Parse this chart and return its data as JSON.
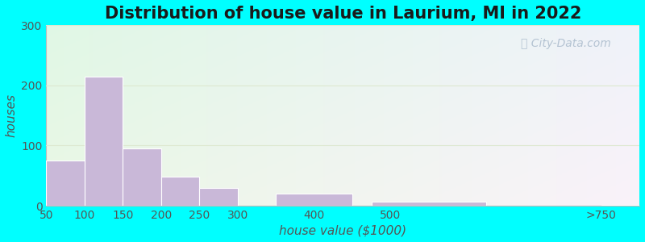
{
  "title": "Distribution of house value in Laurium, MI in 2022",
  "xlabel": "house value ($1000)",
  "ylabel": "houses",
  "bar_centers": [
    75,
    125,
    175,
    225,
    275,
    400,
    550,
    800
  ],
  "bar_widths": [
    50,
    50,
    50,
    50,
    50,
    100,
    150,
    50
  ],
  "bar_heights": [
    75,
    215,
    95,
    48,
    30,
    20,
    7,
    2
  ],
  "bar_color": "#c9b8d8",
  "bar_edgecolor": "#ffffff",
  "bg_color": "#00ffff",
  "ylim": [
    0,
    300
  ],
  "yticks": [
    0,
    100,
    200,
    300
  ],
  "xtick_labels": [
    "50",
    "100",
    "150",
    "200",
    "250",
    "300",
    "400",
    "500",
    ">750"
  ],
  "xtick_positions": [
    50,
    100,
    150,
    200,
    250,
    300,
    400,
    500,
    775
  ],
  "title_fontsize": 15,
  "axis_label_fontsize": 11,
  "tick_fontsize": 10,
  "watermark_text": "City-Data.com",
  "watermark_color": "#aabbcc",
  "grid_color": "#dde8d0",
  "figsize": [
    8.0,
    3.0
  ],
  "dpi": 100,
  "xlim": [
    50,
    825
  ]
}
